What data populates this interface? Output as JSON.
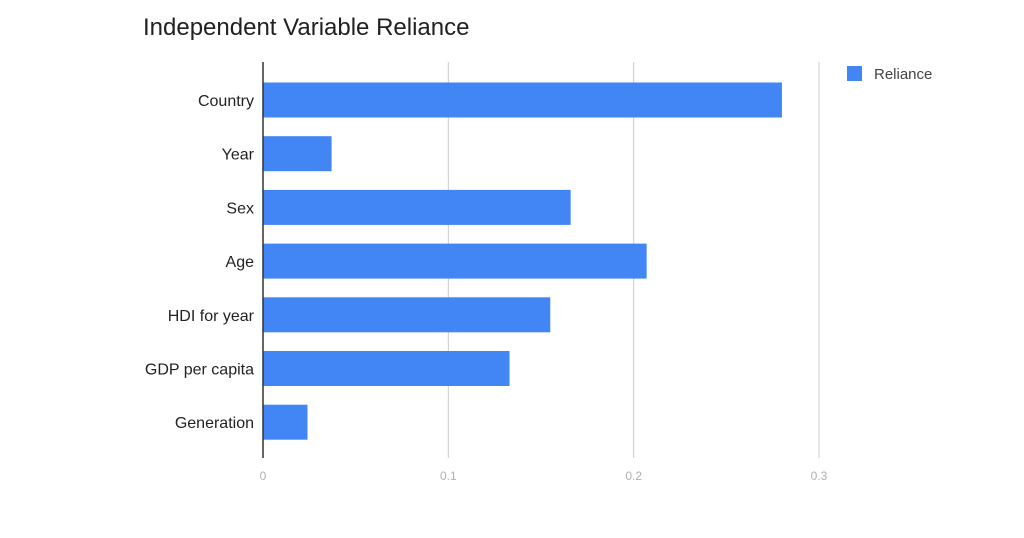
{
  "chart_data": {
    "type": "bar",
    "orientation": "horizontal",
    "title": "Independent Variable Reliance",
    "xlabel": "",
    "ylabel": "",
    "categories": [
      "Country",
      "Year",
      "Sex",
      "Age",
      "HDI for year",
      "GDP per capita",
      "Generation"
    ],
    "series": [
      {
        "name": "Reliance",
        "color": "#4285f4",
        "values": [
          0.28,
          0.037,
          0.166,
          0.207,
          0.155,
          0.133,
          0.024
        ]
      }
    ],
    "xlim": [
      0,
      0.3
    ],
    "ticks": [
      "0",
      "0.1",
      "0.2",
      "0.3"
    ],
    "tick_values": [
      0,
      0.1,
      0.2,
      0.3
    ],
    "grid": true,
    "legend_position": "top-right"
  }
}
